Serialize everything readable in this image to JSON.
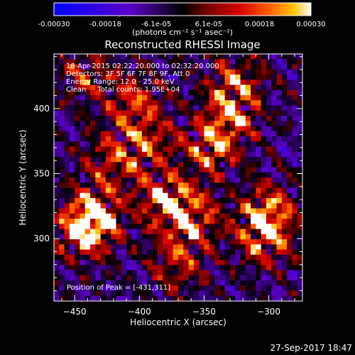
{
  "colorbar": {
    "tick_labels": [
      "-0.00030",
      "-0.00018",
      "-6.1e-05",
      "6.1e-05",
      "0.00018",
      "0.00030"
    ],
    "tick_values": [
      -0.0003,
      -0.00018,
      -6.1e-05,
      6.1e-05,
      0.00018,
      0.0003
    ],
    "range": [
      -0.0003,
      0.0003
    ],
    "unit_label": "(photons cm⁻² s⁻¹ asec⁻²)",
    "colors": [
      "#0000ff",
      "#5a00c8",
      "#000000",
      "#7a0000",
      "#d40000",
      "#ff6000",
      "#ffc000",
      "#ffffff"
    ]
  },
  "chart_data": {
    "type": "heatmap",
    "title": "Reconstructed RHESSI Image",
    "xlabel": "Heliocentric X (arcsec)",
    "ylabel": "Heliocentric Y (arcsec)",
    "xlim": [
      -466,
      -274
    ],
    "ylim": [
      252,
      442
    ],
    "x_ticks": [
      -450,
      -400,
      -350,
      -300
    ],
    "y_ticks": [
      300,
      350,
      400
    ],
    "x_tick_labels": [
      "−450",
      "−400",
      "−350",
      "−300"
    ],
    "y_tick_labels": [
      "300",
      "350",
      "400"
    ],
    "annotations": [
      "18-Apr-2015 02:22:20.000 to 02:32:20.000",
      "Detectors: 3F 5F 6F 7F 8F 9F, Att 0",
      "Energy Range: 12.0 - 25.0 keV",
      "Clean     Total counts: 1.95E+04"
    ],
    "peak_label": "Position of Peak = [-431,311]",
    "peak_position": [
      -431,
      311
    ],
    "hot_spots": [
      {
        "x": -435,
        "y": 318,
        "amp": 1.0
      },
      {
        "x": -442,
        "y": 305,
        "amp": 0.75
      },
      {
        "x": -380,
        "y": 330,
        "amp": 0.9
      },
      {
        "x": -360,
        "y": 315,
        "amp": 0.8
      },
      {
        "x": -345,
        "y": 370,
        "amp": 0.75
      },
      {
        "x": -330,
        "y": 395,
        "amp": 0.7
      },
      {
        "x": -405,
        "y": 405,
        "amp": 0.6
      },
      {
        "x": -300,
        "y": 320,
        "amp": 0.85
      },
      {
        "x": -305,
        "y": 300,
        "amp": 0.7
      },
      {
        "x": -420,
        "y": 360,
        "amp": 0.55
      },
      {
        "x": -370,
        "y": 280,
        "amp": 0.55
      },
      {
        "x": -325,
        "y": 420,
        "amp": 0.6
      },
      {
        "x": -440,
        "y": 425,
        "amp": 0.45
      },
      {
        "x": -395,
        "y": 375,
        "amp": 0.6
      }
    ]
  },
  "footer": {
    "timestamp": "27-Sep-2017 18:47"
  }
}
